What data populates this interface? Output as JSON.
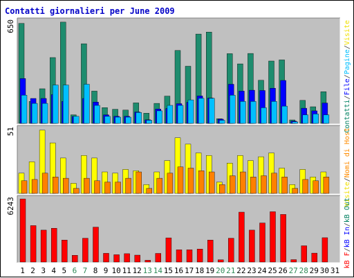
{
  "colors": {
    "panel_bg": "#c0c0c0",
    "page_bg": "#ffffff",
    "title": "#0000c8",
    "weekday_label": "#000000",
    "weekend_label": "#2e8b57"
  },
  "chart_data": {
    "title": "Contatti giornalieri per June 2009",
    "type": "bar",
    "days": [
      "1",
      "2",
      "3",
      "4",
      "5",
      "6",
      "7",
      "8",
      "9",
      "10",
      "11",
      "12",
      "13",
      "14",
      "15",
      "16",
      "17",
      "18",
      "19",
      "20",
      "21",
      "22",
      "23",
      "24",
      "25",
      "26",
      "27",
      "28",
      "29",
      "30",
      "31"
    ],
    "weekend_days": [
      "6",
      "7",
      "13",
      "14",
      "20",
      "21",
      "27",
      "28"
    ],
    "panels": [
      {
        "ymax_label": "650",
        "ymax": 650,
        "right_label": [
          {
            "text": "Contatti",
            "color": "#008060"
          },
          {
            "text": "/",
            "color": "#404040"
          },
          {
            "text": "File",
            "color": "#0000ff"
          },
          {
            "text": "/",
            "color": "#404040"
          },
          {
            "text": "Pagine",
            "color": "#00bfff"
          },
          {
            "text": "/",
            "color": "#404040"
          },
          {
            "text": "Visite",
            "color": "#f0e000"
          }
        ],
        "series": [
          {
            "name": "Contatti",
            "color": "#1e8c6e",
            "values": [
              638,
              140,
              221,
              420,
              646,
              55,
              508,
              206,
              101,
              90,
              85,
              131,
              65,
              128,
              174,
              465,
              365,
              570,
              583,
              30,
              445,
              380,
              446,
              275,
              398,
              405,
              22,
              147,
              106,
              202,
              0
            ]
          },
          {
            "name": "File",
            "color": "#0000ff",
            "values": [
              286,
              159,
              159,
              184,
              140,
              44,
              159,
              136,
              55,
              45,
              45,
              73,
              23,
              92,
              95,
              126,
              135,
              175,
              162,
              27,
              250,
              206,
              212,
              210,
              224,
              274,
              15,
              97,
              80,
              130,
              0
            ]
          },
          {
            "name": "Pagine",
            "color": "#00bfff",
            "values": [
              180,
              128,
              128,
              245,
              245,
              45,
              250,
              115,
              45,
              40,
              40,
              70,
              20,
              80,
              115,
              115,
              150,
              160,
              160,
              20,
              180,
              140,
              140,
              100,
              140,
              110,
              10,
              55,
              60,
              55,
              0
            ]
          }
        ]
      },
      {
        "ymax_label": "51",
        "ymax": 51,
        "right_label": [
          {
            "text": "Visite",
            "color": "#f0e000"
          },
          {
            "text": "/",
            "color": "#404040"
          },
          {
            "text": "Nomi di Host",
            "color": "#ff8c00"
          }
        ],
        "series": [
          {
            "name": "Visite",
            "color": "#ffff00",
            "values": [
              16,
              25,
              50,
              40,
              28,
              8,
              30,
              28,
              17,
              16,
              19,
              18,
              7,
              17,
              26,
              44,
              39,
              32,
              30,
              9,
              24,
              30,
              26,
              29,
              32,
              20,
              7,
              19,
              13,
              17,
              0
            ]
          },
          {
            "name": "Nomi di Host",
            "color": "#ff8000",
            "values": [
              10,
              11,
              16,
              13,
              12,
              4,
              12,
              10,
              9,
              9,
              12,
              17,
              4,
              12,
              16,
              21,
              20,
              18,
              17,
              7,
              14,
              17,
              13,
              14,
              16,
              13,
              4,
              11,
              10,
              13,
              0
            ]
          }
        ]
      },
      {
        "ymax_label": "6243",
        "ymax": 6243,
        "right_label": [
          {
            "text": "kB F",
            "color": "#ff0000"
          },
          {
            "text": "/",
            "color": "#404040"
          },
          {
            "text": "kB In",
            "color": "#0000ff"
          },
          {
            "text": "/",
            "color": "#404040"
          },
          {
            "text": "kB Out",
            "color": "#008060"
          }
        ],
        "series": [
          {
            "name": "kB F",
            "color": "#ff0000",
            "values": [
              6243,
              3606,
              3165,
              3338,
              2174,
              671,
              2359,
              3461,
              863,
              729,
              827,
              683,
              176,
              858,
              2391,
              1211,
              1211,
              1289,
              2174,
              228,
              2359,
              4939,
              3162,
              3869,
              4981,
              4711,
              242,
              1611,
              886,
              2410,
              0
            ]
          }
        ]
      }
    ]
  }
}
